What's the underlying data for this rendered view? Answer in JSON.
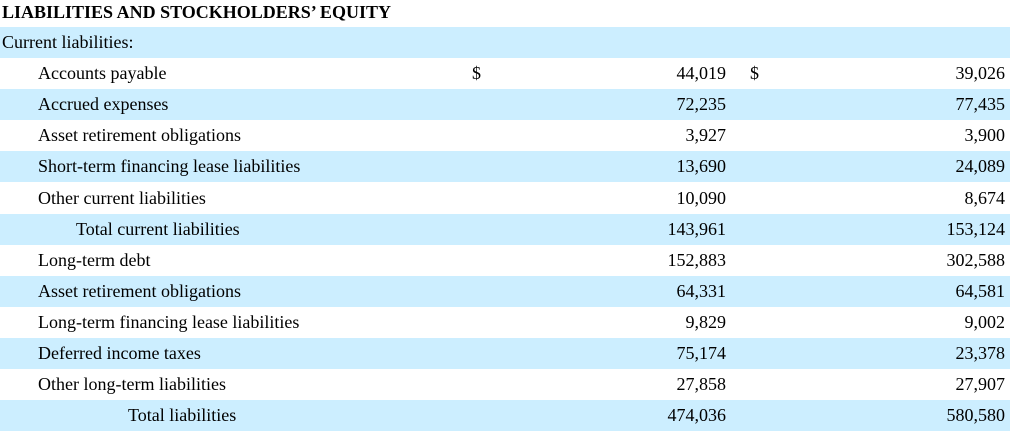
{
  "header": {
    "title": "LIABILITIES AND STOCKHOLDERS’ EQUITY"
  },
  "table": {
    "rows": [
      {
        "label": "Current liabilities:"
      },
      {
        "label": "Accounts payable",
        "currency": [
          "$",
          "$"
        ],
        "values": [
          "44,019",
          "39,026"
        ]
      },
      {
        "label": "Accrued expenses",
        "values": [
          "72,235",
          "77,435"
        ]
      },
      {
        "label": "Asset retirement obligations",
        "values": [
          "3,927",
          "3,900"
        ]
      },
      {
        "label": "Short-term financing lease liabilities",
        "values": [
          "13,690",
          "24,089"
        ]
      },
      {
        "label": "Other current liabilities",
        "values": [
          "10,090",
          "8,674"
        ]
      },
      {
        "label": "Total current liabilities",
        "values": [
          "143,961",
          "153,124"
        ]
      },
      {
        "label": "Long-term debt",
        "values": [
          "152,883",
          "302,588"
        ]
      },
      {
        "label": "Asset retirement obligations",
        "values": [
          "64,331",
          "64,581"
        ]
      },
      {
        "label": "Long-term financing lease liabilities",
        "values": [
          "9,829",
          "9,002"
        ]
      },
      {
        "label": "Deferred income taxes",
        "values": [
          "75,174",
          "23,378"
        ]
      },
      {
        "label": "Other long-term liabilities",
        "values": [
          "27,858",
          "27,907"
        ]
      },
      {
        "label": "Total liabilities",
        "values": [
          "474,036",
          "580,580"
        ]
      }
    ]
  }
}
